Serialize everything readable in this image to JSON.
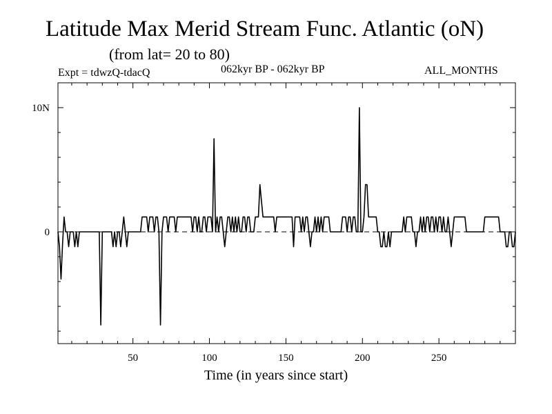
{
  "chart_data": {
    "type": "line",
    "title": "Latitude Max Merid Stream Func. Atlantic (oN)",
    "subtitle": "(from lat= 20 to 80)",
    "experiment": "Expt = tdwzQ-tdacQ",
    "period": "062kyr BP - 062kyr BP",
    "months": "ALL_MONTHS",
    "xlabel": "Time (in years since start)",
    "ylabel": "",
    "xlim": [
      1,
      300
    ],
    "ylim": [
      -9,
      12
    ],
    "xticks": [
      {
        "value": 50,
        "label": "50"
      },
      {
        "value": 100,
        "label": "100"
      },
      {
        "value": 150,
        "label": "150"
      },
      {
        "value": 200,
        "label": "200"
      },
      {
        "value": 250,
        "label": "250"
      }
    ],
    "yticks": [
      {
        "value": 10,
        "label": "10N"
      },
      {
        "value": 0,
        "label": "0"
      }
    ],
    "zero_line": "dashed",
    "series": [
      {
        "name": "latitude max",
        "points": [
          [
            1,
            0
          ],
          [
            2,
            -1.2
          ],
          [
            3,
            -3.8
          ],
          [
            4,
            -1
          ],
          [
            5,
            1.2
          ],
          [
            6,
            0
          ],
          [
            7,
            0
          ],
          [
            8,
            -1.2
          ],
          [
            9,
            0
          ],
          [
            10,
            0
          ],
          [
            11,
            0
          ],
          [
            12,
            -1.2
          ],
          [
            13,
            0
          ],
          [
            14,
            -1.2
          ],
          [
            15,
            0
          ],
          [
            16,
            0
          ],
          [
            17,
            0
          ],
          [
            18,
            0
          ],
          [
            19,
            0
          ],
          [
            20,
            0
          ],
          [
            21,
            0
          ],
          [
            22,
            0
          ],
          [
            23,
            0
          ],
          [
            24,
            0
          ],
          [
            25,
            0
          ],
          [
            26,
            0
          ],
          [
            27,
            0
          ],
          [
            28,
            0
          ],
          [
            29,
            -7.5
          ],
          [
            30,
            0
          ],
          [
            31,
            0
          ],
          [
            32,
            0
          ],
          [
            33,
            0
          ],
          [
            34,
            0
          ],
          [
            35,
            0
          ],
          [
            36,
            0
          ],
          [
            37,
            -1.2
          ],
          [
            38,
            0
          ],
          [
            39,
            -1.2
          ],
          [
            40,
            0
          ],
          [
            41,
            0
          ],
          [
            42,
            -1.2
          ],
          [
            43,
            0
          ],
          [
            44,
            1.2
          ],
          [
            45,
            0
          ],
          [
            46,
            -1.2
          ],
          [
            47,
            0
          ],
          [
            48,
            0
          ],
          [
            49,
            0
          ],
          [
            50,
            0
          ],
          [
            51,
            0
          ],
          [
            52,
            0
          ],
          [
            53,
            0
          ],
          [
            54,
            0
          ],
          [
            55,
            0
          ],
          [
            56,
            1.2
          ],
          [
            57,
            1.2
          ],
          [
            58,
            1.2
          ],
          [
            59,
            1.2
          ],
          [
            60,
            0
          ],
          [
            61,
            1.2
          ],
          [
            62,
            1.2
          ],
          [
            63,
            1.2
          ],
          [
            64,
            0
          ],
          [
            65,
            1.2
          ],
          [
            66,
            1.2
          ],
          [
            67,
            0
          ],
          [
            68,
            -7.5
          ],
          [
            69,
            0
          ],
          [
            70,
            1.2
          ],
          [
            71,
            1.2
          ],
          [
            72,
            1.2
          ],
          [
            73,
            0
          ],
          [
            74,
            1.2
          ],
          [
            75,
            1.2
          ],
          [
            76,
            1.2
          ],
          [
            77,
            1.2
          ],
          [
            78,
            0
          ],
          [
            79,
            1.2
          ],
          [
            80,
            1.2
          ],
          [
            81,
            1.2
          ],
          [
            82,
            1.2
          ],
          [
            83,
            1.2
          ],
          [
            84,
            1.2
          ],
          [
            85,
            1.2
          ],
          [
            86,
            1.2
          ],
          [
            87,
            1.2
          ],
          [
            88,
            1.2
          ],
          [
            89,
            0
          ],
          [
            90,
            1.2
          ],
          [
            91,
            1.2
          ],
          [
            92,
            0
          ],
          [
            93,
            1.2
          ],
          [
            94,
            0
          ],
          [
            95,
            0
          ],
          [
            96,
            1.2
          ],
          [
            97,
            1.2
          ],
          [
            98,
            0
          ],
          [
            99,
            1.2
          ],
          [
            100,
            1.2
          ],
          [
            101,
            1.2
          ],
          [
            102,
            0
          ],
          [
            103,
            7.5
          ],
          [
            104,
            0
          ],
          [
            105,
            1.2
          ],
          [
            106,
            0
          ],
          [
            107,
            1.2
          ],
          [
            108,
            1.2
          ],
          [
            109,
            0
          ],
          [
            110,
            -1.2
          ],
          [
            111,
            0
          ],
          [
            112,
            1.2
          ],
          [
            113,
            1.2
          ],
          [
            114,
            0
          ],
          [
            115,
            1.2
          ],
          [
            116,
            0
          ],
          [
            117,
            1.2
          ],
          [
            118,
            0
          ],
          [
            119,
            1.2
          ],
          [
            120,
            0
          ],
          [
            121,
            0
          ],
          [
            122,
            1.2
          ],
          [
            123,
            1.2
          ],
          [
            124,
            0
          ],
          [
            125,
            1.2
          ],
          [
            126,
            1.2
          ],
          [
            127,
            0
          ],
          [
            128,
            0
          ],
          [
            129,
            0
          ],
          [
            130,
            1.2
          ],
          [
            131,
            1.2
          ],
          [
            132,
            1.2
          ],
          [
            133,
            3.8
          ],
          [
            134,
            2.5
          ],
          [
            135,
            1.2
          ],
          [
            136,
            1.2
          ],
          [
            137,
            1.2
          ],
          [
            138,
            1.2
          ],
          [
            139,
            1.2
          ],
          [
            140,
            1.2
          ],
          [
            141,
            1.2
          ],
          [
            142,
            1.2
          ],
          [
            143,
            0
          ],
          [
            144,
            1.2
          ],
          [
            145,
            1.2
          ],
          [
            146,
            1.2
          ],
          [
            147,
            1.2
          ],
          [
            148,
            1.2
          ],
          [
            149,
            1.2
          ],
          [
            150,
            1.2
          ],
          [
            151,
            1.2
          ],
          [
            152,
            1.2
          ],
          [
            153,
            1.2
          ],
          [
            154,
            1.2
          ],
          [
            155,
            -1.2
          ],
          [
            156,
            1.2
          ],
          [
            157,
            1.2
          ],
          [
            158,
            1.2
          ],
          [
            159,
            1.2
          ],
          [
            160,
            0
          ],
          [
            161,
            1.2
          ],
          [
            162,
            0
          ],
          [
            163,
            1.2
          ],
          [
            164,
            1.2
          ],
          [
            165,
            0
          ],
          [
            166,
            -1.2
          ],
          [
            167,
            0
          ],
          [
            168,
            0
          ],
          [
            169,
            1.2
          ],
          [
            170,
            0
          ],
          [
            171,
            1.2
          ],
          [
            172,
            0
          ],
          [
            173,
            1.2
          ],
          [
            174,
            0
          ],
          [
            175,
            1.2
          ],
          [
            176,
            1.2
          ],
          [
            177,
            1.2
          ],
          [
            178,
            1.2
          ],
          [
            179,
            0
          ],
          [
            180,
            0
          ],
          [
            181,
            0
          ],
          [
            182,
            0
          ],
          [
            183,
            0
          ],
          [
            184,
            0
          ],
          [
            185,
            0
          ],
          [
            186,
            0
          ],
          [
            187,
            1.2
          ],
          [
            188,
            1.2
          ],
          [
            189,
            1.2
          ],
          [
            190,
            0
          ],
          [
            191,
            1.2
          ],
          [
            192,
            1.2
          ],
          [
            193,
            0
          ],
          [
            194,
            1.2
          ],
          [
            195,
            1.2
          ],
          [
            196,
            0
          ],
          [
            197,
            0
          ],
          [
            198,
            10
          ],
          [
            199,
            0
          ],
          [
            200,
            0
          ],
          [
            201,
            1.2
          ],
          [
            202,
            3.8
          ],
          [
            203,
            3.8
          ],
          [
            204,
            1.2
          ],
          [
            205,
            1.2
          ],
          [
            206,
            1.2
          ],
          [
            207,
            1.2
          ],
          [
            208,
            1.2
          ],
          [
            209,
            1.2
          ],
          [
            210,
            0
          ],
          [
            211,
            0
          ],
          [
            212,
            -1.2
          ],
          [
            213,
            -1.2
          ],
          [
            214,
            0
          ],
          [
            215,
            -1.2
          ],
          [
            216,
            -1.2
          ],
          [
            217,
            0
          ],
          [
            218,
            -1.2
          ],
          [
            219,
            0
          ],
          [
            220,
            0
          ],
          [
            221,
            0
          ],
          [
            222,
            0
          ],
          [
            223,
            0
          ],
          [
            224,
            0
          ],
          [
            225,
            0
          ],
          [
            226,
            0
          ],
          [
            227,
            1.2
          ],
          [
            228,
            0
          ],
          [
            229,
            1.2
          ],
          [
            230,
            1.2
          ],
          [
            231,
            1.2
          ],
          [
            232,
            1.2
          ],
          [
            233,
            0
          ],
          [
            234,
            0
          ],
          [
            235,
            -1.2
          ],
          [
            236,
            0
          ],
          [
            237,
            0
          ],
          [
            238,
            1.2
          ],
          [
            239,
            0
          ],
          [
            240,
            1.2
          ],
          [
            241,
            0
          ],
          [
            242,
            1.2
          ],
          [
            243,
            1.2
          ],
          [
            244,
            0
          ],
          [
            245,
            1.2
          ],
          [
            246,
            1.2
          ],
          [
            247,
            0
          ],
          [
            248,
            1.2
          ],
          [
            249,
            0
          ],
          [
            250,
            1.2
          ],
          [
            251,
            1.2
          ],
          [
            252,
            0
          ],
          [
            253,
            1.2
          ],
          [
            254,
            0
          ],
          [
            255,
            0
          ],
          [
            256,
            1.2
          ],
          [
            257,
            0
          ],
          [
            258,
            -1.2
          ],
          [
            259,
            0
          ],
          [
            260,
            1.2
          ],
          [
            261,
            1.2
          ],
          [
            262,
            1.2
          ],
          [
            263,
            1.2
          ],
          [
            264,
            1.2
          ],
          [
            265,
            1.2
          ],
          [
            266,
            1.2
          ],
          [
            267,
            1.2
          ],
          [
            268,
            0
          ],
          [
            269,
            0
          ],
          [
            270,
            0
          ],
          [
            271,
            0
          ],
          [
            272,
            0
          ],
          [
            273,
            0
          ],
          [
            274,
            0
          ],
          [
            275,
            0
          ],
          [
            276,
            0
          ],
          [
            277,
            0
          ],
          [
            278,
            0
          ],
          [
            279,
            0
          ],
          [
            280,
            1.2
          ],
          [
            281,
            1.2
          ],
          [
            282,
            1.2
          ],
          [
            283,
            1.2
          ],
          [
            284,
            1.2
          ],
          [
            285,
            1.2
          ],
          [
            286,
            1.2
          ],
          [
            287,
            1.2
          ],
          [
            288,
            1.2
          ],
          [
            289,
            1.2
          ],
          [
            290,
            0
          ],
          [
            291,
            0
          ],
          [
            292,
            0
          ],
          [
            293,
            0
          ],
          [
            294,
            -1.2
          ],
          [
            295,
            -1.2
          ],
          [
            296,
            0
          ],
          [
            297,
            0
          ],
          [
            298,
            -1.2
          ],
          [
            299,
            -1.2
          ],
          [
            300,
            0
          ]
        ]
      }
    ]
  }
}
